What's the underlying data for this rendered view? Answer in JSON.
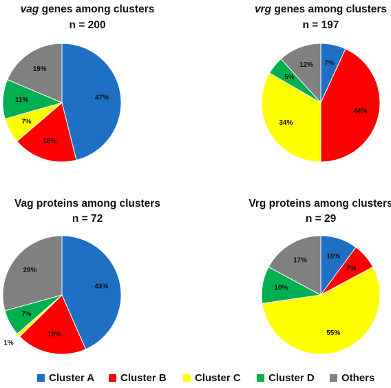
{
  "chart_data": [
    {
      "type": "pie",
      "title_italic": "vag",
      "title_rest": " genes among clusters",
      "subtitle": "n = 200",
      "slices": [
        {
          "category": "Cluster A",
          "value": 47,
          "label": "47%"
        },
        {
          "category": "Cluster B",
          "value": 18,
          "label": "18%"
        },
        {
          "category": "Cluster C",
          "value": 7,
          "label": "7%"
        },
        {
          "category": "Cluster D",
          "value": 11,
          "label": "11%"
        },
        {
          "category": "Others",
          "value": 19,
          "label": "19%"
        }
      ]
    },
    {
      "type": "pie",
      "title_italic": "vrg",
      "title_rest": " genes among clusters",
      "subtitle": "n = 197",
      "slices": [
        {
          "category": "Cluster A",
          "value": 7,
          "label": "7%"
        },
        {
          "category": "Cluster B",
          "value": 44,
          "label": "44%"
        },
        {
          "category": "Cluster C",
          "value": 34,
          "label": "34%"
        },
        {
          "category": "Cluster D",
          "value": 5,
          "label": "5%"
        },
        {
          "category": "Others",
          "value": 12,
          "label": "12%"
        }
      ]
    },
    {
      "type": "pie",
      "title_italic": "",
      "title_rest": "Vag proteins among clusters",
      "subtitle": "n = 72",
      "slices": [
        {
          "category": "Cluster A",
          "value": 43,
          "label": "43%"
        },
        {
          "category": "Cluster B",
          "value": 19,
          "label": "19%"
        },
        {
          "category": "Cluster C",
          "value": 1,
          "label": "1%"
        },
        {
          "category": "Cluster D",
          "value": 7,
          "label": "7%"
        },
        {
          "category": "Others",
          "value": 29,
          "label": "29%"
        }
      ]
    },
    {
      "type": "pie",
      "title_italic": "",
      "title_rest": "Vrg proteins among clusters",
      "subtitle": "n = 29",
      "slices": [
        {
          "category": "Cluster A",
          "value": 10,
          "label": "10%"
        },
        {
          "category": "Cluster B",
          "value": 7,
          "label": "7%"
        },
        {
          "category": "Cluster C",
          "value": 55,
          "label": "55%"
        },
        {
          "category": "Cluster D",
          "value": 10,
          "label": "10%"
        },
        {
          "category": "Others",
          "value": 17,
          "label": "17%"
        }
      ]
    }
  ],
  "legend": {
    "placement": "bottom",
    "items": [
      {
        "label": "Cluster A",
        "color": "#1f6fc5"
      },
      {
        "label": "Cluster B",
        "color": "#ff0000"
      },
      {
        "label": "Cluster C",
        "color": "#ffff00"
      },
      {
        "label": "Cluster D",
        "color": "#00b050"
      },
      {
        "label": "Others",
        "color": "#808080"
      }
    ]
  }
}
